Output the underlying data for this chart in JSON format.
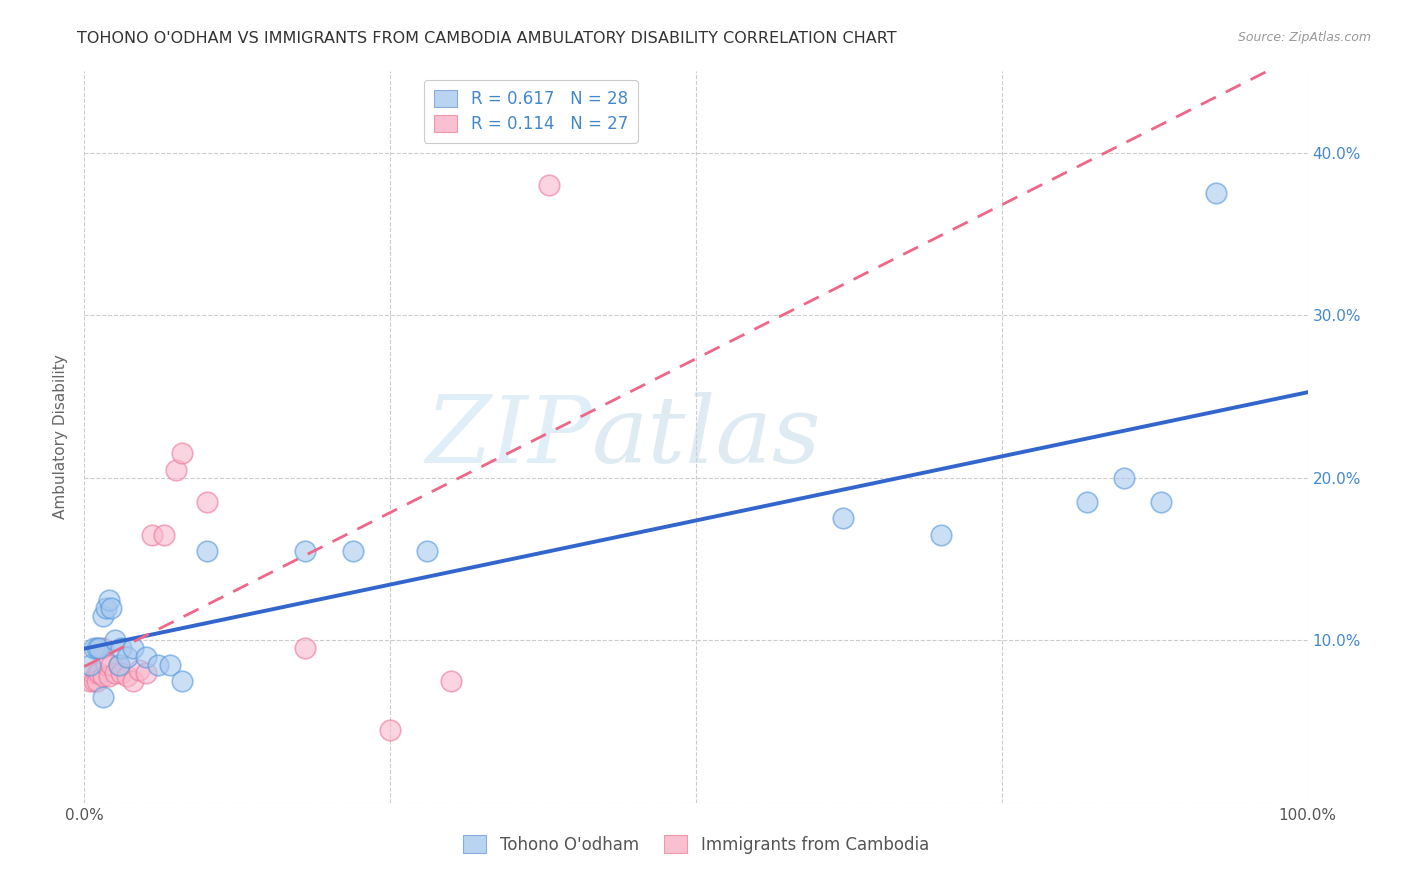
{
  "title": "TOHONO O'ODHAM VS IMMIGRANTS FROM CAMBODIA AMBULATORY DISABILITY CORRELATION CHART",
  "source": "Source: ZipAtlas.com",
  "ylabel": "Ambulatory Disability",
  "watermark_zip": "ZIP",
  "watermark_atlas": "atlas",
  "blue_color": "#a8c8ee",
  "blue_edge_color": "#5599dd",
  "pink_color": "#f8b8cc",
  "pink_edge_color": "#ee7799",
  "blue_line_color": "#3366cc",
  "pink_line_color": "#ee6688",
  "xlim": [
    0.0,
    1.0
  ],
  "ylim": [
    0.0,
    0.45
  ],
  "xtick_positions": [
    0.0,
    0.25,
    0.5,
    0.75,
    1.0
  ],
  "xtick_labels": [
    "0.0%",
    "",
    "",
    "",
    "100.0%"
  ],
  "ytick_positions": [
    0.0,
    0.1,
    0.2,
    0.3,
    0.4
  ],
  "ytick_labels": [
    "",
    "10.0%",
    "20.0%",
    "30.0%",
    "40.0%"
  ],
  "blue_x": [
    0.005,
    0.008,
    0.01,
    0.012,
    0.015,
    0.018,
    0.02,
    0.022,
    0.025,
    0.028,
    0.03,
    0.035,
    0.04,
    0.05,
    0.06,
    0.07,
    0.08,
    0.1,
    0.18,
    0.22,
    0.28,
    0.62,
    0.7,
    0.82,
    0.85,
    0.88,
    0.925,
    0.015
  ],
  "blue_y": [
    0.085,
    0.095,
    0.095,
    0.095,
    0.115,
    0.12,
    0.125,
    0.12,
    0.1,
    0.085,
    0.095,
    0.09,
    0.095,
    0.09,
    0.085,
    0.085,
    0.075,
    0.155,
    0.155,
    0.155,
    0.155,
    0.175,
    0.165,
    0.185,
    0.2,
    0.185,
    0.375,
    0.065
  ],
  "pink_x": [
    0.005,
    0.006,
    0.008,
    0.01,
    0.01,
    0.012,
    0.015,
    0.015,
    0.018,
    0.02,
    0.022,
    0.025,
    0.028,
    0.03,
    0.035,
    0.04,
    0.045,
    0.05,
    0.055,
    0.065,
    0.075,
    0.08,
    0.1,
    0.18,
    0.25,
    0.3,
    0.38
  ],
  "pink_y": [
    0.075,
    0.08,
    0.075,
    0.08,
    0.075,
    0.08,
    0.078,
    0.095,
    0.085,
    0.078,
    0.085,
    0.08,
    0.085,
    0.08,
    0.078,
    0.075,
    0.082,
    0.08,
    0.165,
    0.165,
    0.205,
    0.215,
    0.185,
    0.095,
    0.045,
    0.075,
    0.38
  ],
  "background_color": "#ffffff",
  "grid_color": "#cccccc",
  "title_fontsize": 11.5,
  "tick_fontsize": 11,
  "legend_fontsize": 12
}
